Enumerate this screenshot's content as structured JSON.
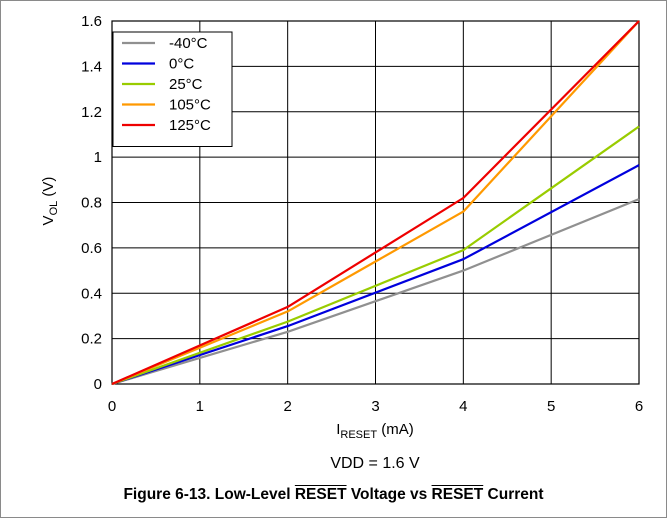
{
  "chart_data": {
    "type": "line",
    "xlabel_main": "I",
    "xlabel_sub": "RESET",
    "xlabel_unit": " (mA)",
    "ylabel_main": "V",
    "ylabel_sub": "OL",
    "ylabel_unit": " (V)",
    "xlim": [
      0,
      6
    ],
    "ylim": [
      0,
      1.6
    ],
    "x_ticks": [
      "0",
      "1",
      "2",
      "3",
      "4",
      "5",
      "6"
    ],
    "y_ticks": [
      "0",
      "0.2",
      "0.4",
      "0.6",
      "0.8",
      "1",
      "1.2",
      "1.4",
      "1.6"
    ],
    "grid": true,
    "legend_position": "top-left",
    "x": [
      0,
      2,
      4,
      6
    ],
    "series": [
      {
        "name": "-40°C",
        "color": "#909090",
        "values": [
          0,
          0.23,
          0.5,
          0.815
        ]
      },
      {
        "name": "0°C",
        "color": "#0000dd",
        "values": [
          0,
          0.255,
          0.55,
          0.965
        ]
      },
      {
        "name": "25°C",
        "color": "#99cc00",
        "values": [
          0,
          0.275,
          0.59,
          1.135
        ]
      },
      {
        "name": "105°C",
        "color": "#ff9900",
        "values": [
          0,
          0.32,
          0.76,
          1.6
        ]
      },
      {
        "name": "125°C",
        "color": "#ee0000",
        "values": [
          0,
          0.34,
          0.82,
          1.6
        ]
      }
    ],
    "annotation": "VDD = 1.6 V"
  },
  "caption": {
    "prefix": "Figure 6-13. Low-Level ",
    "overline_word_1": "RESET",
    "middle": " Voltage vs ",
    "overline_word_2": "RESET",
    "suffix": " Current"
  }
}
